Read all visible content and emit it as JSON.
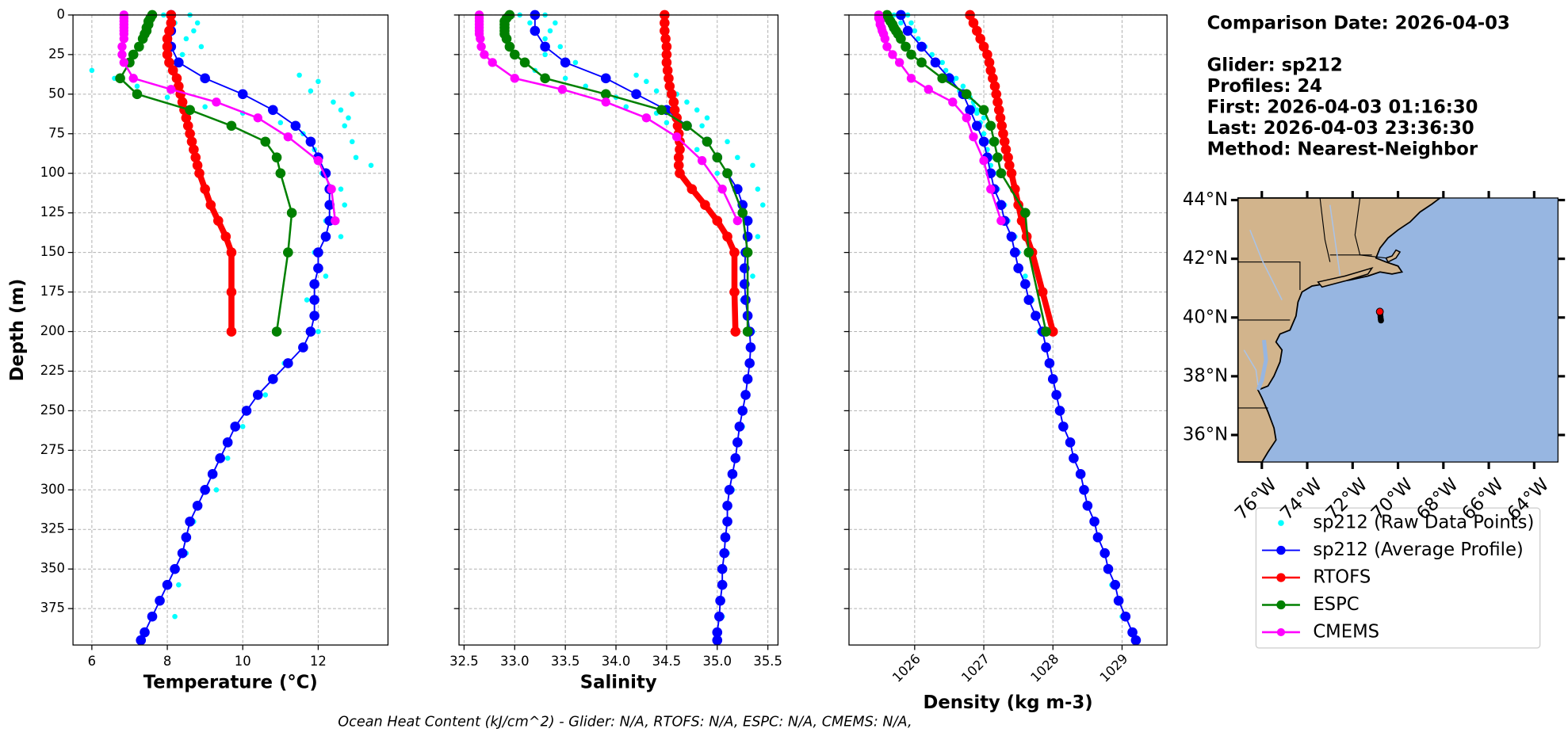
{
  "chart_data": [
    {
      "type": "profile",
      "xlabel": "Temperature (°C)",
      "ylabel": "Depth (m)",
      "xlim": [
        5.5,
        13.85
      ],
      "xticks": [
        6,
        8,
        10,
        12
      ],
      "ylim": [
        0,
        398
      ],
      "yticks": [
        0,
        25,
        50,
        75,
        100,
        125,
        150,
        175,
        200,
        225,
        250,
        275,
        300,
        325,
        350,
        375
      ],
      "grid": true,
      "series": [
        {
          "name": "sp212 (Raw Data Points)",
          "color": "#00ffff",
          "linewidth": 0,
          "marker_size": 2.6,
          "y": [
            0,
            0,
            5,
            5,
            10,
            15,
            20,
            25,
            30,
            35,
            38,
            40,
            42,
            45,
            48,
            50,
            52,
            55,
            58,
            60,
            62,
            65,
            68,
            70,
            75,
            80,
            85,
            90,
            95,
            100,
            110,
            120,
            130,
            140,
            150,
            165,
            180,
            200,
            220,
            240,
            260,
            280,
            300,
            320,
            340,
            360,
            380
          ],
          "values": [
            8.6,
            7.9,
            8.8,
            8.2,
            8.7,
            8.5,
            8.9,
            8.4,
            8.0,
            6.0,
            11.5,
            6.6,
            12.0,
            7.2,
            11.8,
            12.9,
            8.0,
            12.4,
            9.0,
            12.6,
            10.0,
            12.8,
            11.0,
            12.7,
            11.6,
            12.9,
            11.9,
            13.0,
            13.4,
            12.1,
            12.6,
            12.7,
            12.2,
            12.6,
            11.9,
            12.2,
            11.7,
            12.0,
            11.1,
            10.6,
            10.0,
            9.6,
            9.3,
            8.7,
            8.5,
            8.3,
            8.2
          ]
        },
        {
          "name": "sp212 (Average Profile)",
          "color": "#0000ff",
          "linewidth": 1.5,
          "marker_size": 5,
          "y": [
            0,
            10,
            20,
            30,
            40,
            50,
            60,
            70,
            80,
            90,
            100,
            110,
            120,
            130,
            140,
            150,
            160,
            170,
            180,
            190,
            200,
            210,
            220,
            230,
            240,
            250,
            260,
            270,
            280,
            290,
            300,
            310,
            320,
            330,
            340,
            350,
            360,
            370,
            380,
            390,
            395
          ],
          "values": [
            8.1,
            8.1,
            8.1,
            8.3,
            9.0,
            10.0,
            10.8,
            11.4,
            11.8,
            12.0,
            12.2,
            12.3,
            12.3,
            12.3,
            12.2,
            12.0,
            12.0,
            11.9,
            11.9,
            11.9,
            11.8,
            11.6,
            11.2,
            10.8,
            10.4,
            10.1,
            9.8,
            9.6,
            9.4,
            9.2,
            9.0,
            8.8,
            8.6,
            8.5,
            8.4,
            8.2,
            8.0,
            7.8,
            7.6,
            7.4,
            7.3
          ]
        },
        {
          "name": "RTOFS",
          "color": "#ff0000",
          "linewidth": 6,
          "marker_size": 5,
          "y": [
            0,
            5,
            10,
            15,
            20,
            25,
            30,
            35,
            40,
            45,
            50,
            55,
            60,
            65,
            70,
            75,
            80,
            85,
            90,
            95,
            100,
            110,
            120,
            130,
            140,
            150,
            175,
            200
          ],
          "values": [
            8.1,
            8.1,
            8.05,
            8.0,
            8.0,
            8.0,
            8.05,
            8.15,
            8.25,
            8.3,
            8.35,
            8.4,
            8.45,
            8.5,
            8.55,
            8.6,
            8.65,
            8.7,
            8.75,
            8.8,
            8.85,
            9.0,
            9.15,
            9.35,
            9.55,
            9.7,
            9.7,
            9.7
          ]
        },
        {
          "name": "ESPC",
          "color": "#008000",
          "linewidth": 2,
          "marker_size": 5,
          "y": [
            0,
            2,
            4,
            6,
            8,
            10,
            12,
            15,
            20,
            25,
            30,
            40,
            50,
            60,
            70,
            80,
            90,
            100,
            125,
            150,
            200
          ],
          "values": [
            7.6,
            7.55,
            7.5,
            7.5,
            7.45,
            7.45,
            7.4,
            7.35,
            7.25,
            7.1,
            7.0,
            6.75,
            7.2,
            8.6,
            9.7,
            10.6,
            10.9,
            11.0,
            11.3,
            11.2,
            10.9
          ]
        },
        {
          "name": "CMEMS",
          "color": "#ff00ff",
          "linewidth": 2,
          "marker_size": 4.5,
          "y": [
            0,
            2,
            4,
            6,
            8,
            10,
            12,
            15,
            20,
            25,
            30,
            40,
            47,
            55,
            65,
            77,
            92,
            110,
            130
          ],
          "values": [
            6.85,
            6.85,
            6.85,
            6.85,
            6.85,
            6.85,
            6.85,
            6.85,
            6.8,
            6.8,
            6.85,
            7.1,
            8.1,
            9.3,
            10.4,
            11.2,
            12.0,
            12.35,
            12.45
          ]
        }
      ]
    },
    {
      "type": "profile",
      "xlabel": "Salinity",
      "xlim": [
        32.45,
        35.6
      ],
      "xticks": [
        32.5,
        {
          "value": 33,
          "label": "33.0"
        },
        33.5,
        {
          "value": 34,
          "label": "34.0"
        },
        34.5,
        {
          "value": 35,
          "label": "35.0"
        },
        35.5
      ],
      "grid": true,
      "series": [
        {
          "color": "#00ffff",
          "linewidth": 0,
          "marker_size": 2.6,
          "values": [
            33.3,
            33.05,
            33.4,
            33.15,
            33.35,
            33.3,
            33.45,
            33.3,
            33.6,
            33.2,
            34.2,
            33.5,
            34.3,
            33.7,
            34.4,
            34.6,
            34.0,
            34.7,
            34.1,
            34.8,
            34.4,
            34.9,
            34.5,
            34.85,
            34.6,
            35.1,
            34.8,
            35.2,
            35.35,
            35.0,
            35.4,
            35.45,
            35.2,
            35.4,
            35.3,
            35.35,
            35.25,
            35.35,
            35.3,
            35.3,
            35.25,
            35.2,
            35.15,
            35.1,
            35.1,
            35.05,
            35.05
          ]
        },
        {
          "color": "#0000ff",
          "linewidth": 1.5,
          "marker_size": 5,
          "values": [
            33.2,
            33.2,
            33.3,
            33.5,
            33.9,
            34.2,
            34.5,
            34.7,
            34.9,
            35.0,
            35.1,
            35.2,
            35.25,
            35.3,
            35.3,
            35.28,
            35.27,
            35.27,
            35.28,
            35.3,
            35.32,
            35.33,
            35.32,
            35.3,
            35.28,
            35.25,
            35.22,
            35.2,
            35.18,
            35.15,
            35.12,
            35.1,
            35.1,
            35.08,
            35.07,
            35.05,
            35.05,
            35.03,
            35.02,
            35.0,
            35.0
          ]
        },
        {
          "color": "#ff0000",
          "linewidth": 6,
          "marker_size": 5,
          "values": [
            34.48,
            34.48,
            34.48,
            34.49,
            34.5,
            34.5,
            34.5,
            34.51,
            34.52,
            34.53,
            34.55,
            34.57,
            34.58,
            34.6,
            34.61,
            34.62,
            34.63,
            34.63,
            34.62,
            34.62,
            34.63,
            34.75,
            34.88,
            35.0,
            35.1,
            35.17,
            35.17,
            35.18
          ]
        },
        {
          "color": "#008000",
          "linewidth": 2,
          "marker_size": 5,
          "values": [
            32.95,
            32.92,
            32.9,
            32.9,
            32.9,
            32.9,
            32.9,
            32.92,
            32.95,
            33.0,
            33.1,
            33.3,
            33.9,
            34.45,
            34.7,
            34.9,
            35.0,
            35.1,
            35.25,
            35.3,
            35.3
          ]
        },
        {
          "color": "#ff00ff",
          "linewidth": 2,
          "marker_size": 4.5,
          "values": [
            32.65,
            32.65,
            32.65,
            32.65,
            32.65,
            32.65,
            32.65,
            32.66,
            32.67,
            32.7,
            32.78,
            33.0,
            33.47,
            33.9,
            34.3,
            34.6,
            34.85,
            35.05,
            35.2
          ]
        }
      ]
    },
    {
      "type": "profile",
      "xlabel": "Density (kg m-3)",
      "xlim": [
        1025.05,
        1029.65
      ],
      "xticks": [
        1026,
        1027,
        1028,
        1029
      ],
      "xtick_rotation": 45,
      "grid": true,
      "series": [
        {
          "color": "#00ffff",
          "linewidth": 0,
          "marker_size": 2.6,
          "values": [
            1025.9,
            1025.7,
            1025.95,
            1025.8,
            1026.0,
            1026.05,
            1026.15,
            1026.25,
            1026.4,
            1026.45,
            1026.5,
            1026.6,
            1026.55,
            1026.7,
            1026.65,
            1026.75,
            1026.8,
            1026.85,
            1026.85,
            1026.9,
            1026.9,
            1027.0,
            1026.95,
            1027.05,
            1027.0,
            1027.1,
            1027.05,
            1027.15,
            1027.1,
            1027.2,
            1027.2,
            1027.3,
            1027.35,
            1027.45,
            1027.5,
            1027.6,
            1027.7,
            1027.8,
            1027.95,
            1028.05,
            1028.15,
            1028.3,
            1028.45,
            1028.6,
            1028.75,
            1028.85,
            1029.0
          ]
        },
        {
          "color": "#0000ff",
          "linewidth": 1.5,
          "marker_size": 5,
          "values": [
            1025.8,
            1025.9,
            1026.1,
            1026.3,
            1026.5,
            1026.7,
            1026.8,
            1026.9,
            1027.0,
            1027.05,
            1027.1,
            1027.15,
            1027.25,
            1027.3,
            1027.4,
            1027.45,
            1027.5,
            1027.6,
            1027.65,
            1027.75,
            1027.85,
            1027.9,
            1027.95,
            1028.0,
            1028.05,
            1028.1,
            1028.15,
            1028.25,
            1028.3,
            1028.4,
            1028.45,
            1028.5,
            1028.6,
            1028.65,
            1028.75,
            1028.8,
            1028.9,
            1028.95,
            1029.05,
            1029.15,
            1029.2
          ]
        },
        {
          "color": "#ff0000",
          "linewidth": 6,
          "marker_size": 5,
          "values": [
            1026.8,
            1026.85,
            1026.9,
            1026.95,
            1027.0,
            1027.05,
            1027.08,
            1027.1,
            1027.13,
            1027.16,
            1027.18,
            1027.2,
            1027.22,
            1027.24,
            1027.26,
            1027.28,
            1027.3,
            1027.32,
            1027.35,
            1027.37,
            1027.4,
            1027.45,
            1027.5,
            1027.55,
            1027.62,
            1027.7,
            1027.85,
            1028.0
          ]
        },
        {
          "color": "#008000",
          "linewidth": 2,
          "marker_size": 5,
          "values": [
            1025.6,
            1025.62,
            1025.65,
            1025.68,
            1025.7,
            1025.73,
            1025.76,
            1025.8,
            1025.87,
            1025.95,
            1026.1,
            1026.4,
            1026.75,
            1027.0,
            1027.1,
            1027.15,
            1027.2,
            1027.25,
            1027.6,
            1027.65,
            1027.9
          ]
        },
        {
          "color": "#ff00ff",
          "linewidth": 2,
          "marker_size": 4.5,
          "values": [
            1025.48,
            1025.48,
            1025.5,
            1025.5,
            1025.52,
            1025.53,
            1025.55,
            1025.57,
            1025.6,
            1025.68,
            1025.78,
            1025.95,
            1026.2,
            1026.55,
            1026.75,
            1026.85,
            1027.0,
            1027.1,
            1027.25
          ]
        }
      ]
    },
    {
      "type": "map",
      "xlim": [
        -77.05,
        -62.95
      ],
      "ylim": [
        35.08,
        44.07
      ],
      "xticks": [
        {
          "value": -76,
          "label": "76°W"
        },
        {
          "value": -74,
          "label": "74°W"
        },
        {
          "value": -72,
          "label": "72°W"
        },
        {
          "value": -70,
          "label": "70°W"
        },
        {
          "value": -68,
          "label": "68°W"
        },
        {
          "value": -66,
          "label": "66°W"
        },
        {
          "value": -64,
          "label": "64°W"
        }
      ],
      "yticks": [
        {
          "value": 36,
          "label": "36°N"
        },
        {
          "value": 38,
          "label": "38°N"
        },
        {
          "value": 40,
          "label": "40°N"
        },
        {
          "value": 42,
          "label": "42°N"
        },
        {
          "value": 44,
          "label": "44°N"
        }
      ],
      "track": {
        "color": "#000000",
        "x": [
          -70.78,
          -70.77,
          -70.76,
          -70.75
        ],
        "y": [
          40.1,
          40.02,
          39.95,
          39.9
        ]
      },
      "point": {
        "color": "#ff0000",
        "x": -70.8,
        "y": 40.2
      }
    }
  ],
  "info": {
    "title": "Comparison Date: 2026-04-03",
    "lines": [
      "Glider: sp212",
      "Profiles: 24",
      "First: 2026-04-03 01:16:30",
      "Last: 2026-04-03 23:36:30",
      "Method: Nearest-Neighbor"
    ]
  },
  "footer": "Ocean Heat Content (kJ/cm^2) - Glider: N/A,  RTOFS: N/A,  ESPC: N/A,  CMEMS: N/A,"
}
